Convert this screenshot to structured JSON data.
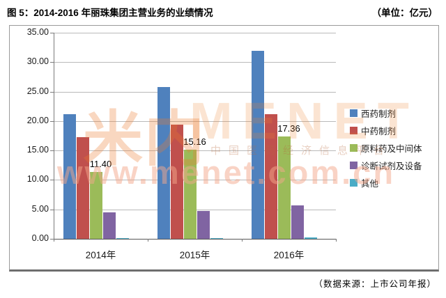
{
  "header": {
    "title": "图 5：2014-2016 年丽珠集团主营业务的业绩情况",
    "unit": "（单位：亿元）"
  },
  "source": "（数据来源：上市公司年报）",
  "watermark": {
    "logo_text": "米内",
    "brand": "MENET",
    "tagline": "中国医药经济信息平台",
    "url": "www.menet.com.cn"
  },
  "chart_data": {
    "type": "bar",
    "categories": [
      "2014年",
      "2015年",
      "2016年"
    ],
    "series": [
      {
        "name": "西药制剂",
        "color": "#4F81BD",
        "values": [
          21.19,
          25.77,
          31.91
        ]
      },
      {
        "name": "中药制剂",
        "color": "#C0504D",
        "values": [
          17.32,
          19.45,
          21.18
        ]
      },
      {
        "name": "原料药及中间体",
        "color": "#9BBB59",
        "values": [
          11.4,
          15.16,
          17.36
        ]
      },
      {
        "name": "诊断试剂及设备",
        "color": "#8064A2",
        "values": [
          4.49,
          4.71,
          5.7
        ]
      },
      {
        "name": "其他",
        "color": "#4BACC6",
        "values": [
          0.15,
          0.15,
          0.2
        ]
      }
    ],
    "data_labels": {
      "series_index": 2,
      "values": [
        "11.40",
        "15.16",
        "17.36"
      ]
    },
    "ylim": [
      0,
      35
    ],
    "ytick_step": 5,
    "ytick_labels": [
      "0.00",
      "5.00",
      "10.00",
      "15.00",
      "20.00",
      "25.00",
      "30.00",
      "35.00"
    ],
    "grid": true,
    "legend_position": "right"
  }
}
